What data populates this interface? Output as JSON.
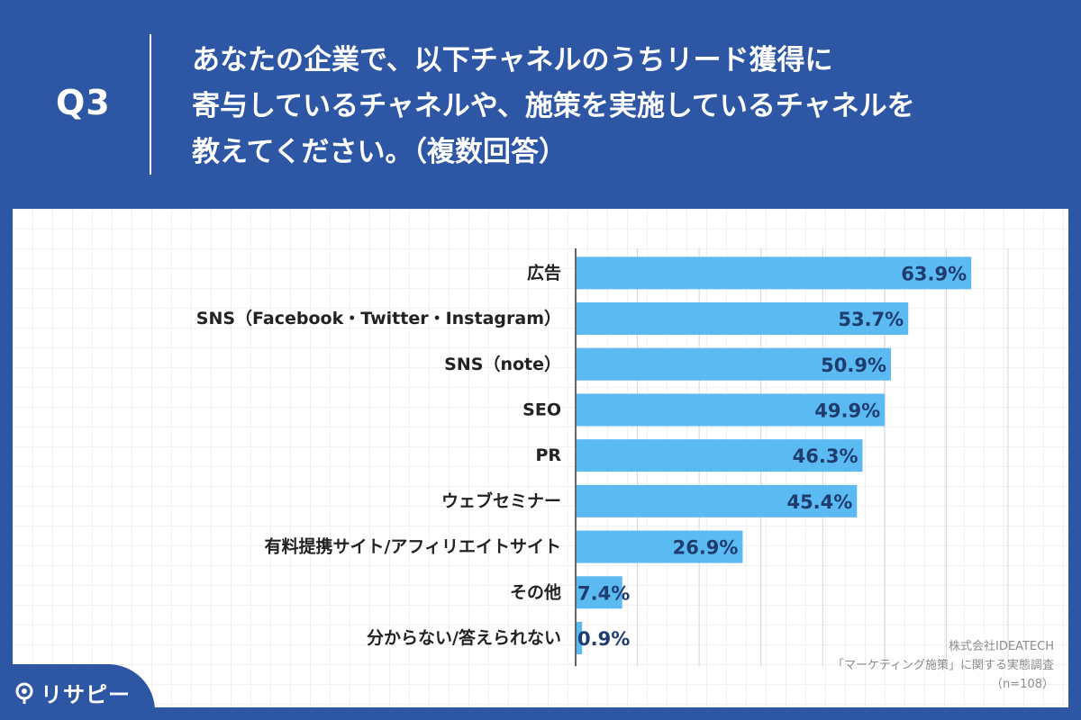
{
  "header": {
    "question_number": "Q3",
    "question_lines": [
      "あなたの企業で、以下チャネルのうちリード獲得に",
      "寄与しているチャネルや、施策を実施しているチャネルを",
      "教えてください。（複数回答）"
    ]
  },
  "chart_data": {
    "type": "bar",
    "orientation": "horizontal",
    "categories": [
      "広告",
      "SNS（Facebook・Twitter・Instagram）",
      "SNS（note）",
      "SEO",
      "PR",
      "ウェブセミナー",
      "有料提携サイト/アフィリエイトサイト",
      "その他",
      "分からない/答えられない"
    ],
    "values": [
      63.9,
      53.7,
      50.9,
      49.9,
      46.3,
      45.4,
      26.9,
      7.4,
      0.9
    ],
    "value_labels": [
      "63.9%",
      "53.7%",
      "50.9%",
      "49.9%",
      "46.3%",
      "45.4%",
      "26.9%",
      "7.4%",
      "0.9%"
    ],
    "xlim": [
      0,
      70
    ],
    "grid": true,
    "bar_color": "#5bbaf2",
    "label_color": "#1f3c6e"
  },
  "source": {
    "company": "株式会社IDEATECH",
    "survey": "「マーケティング施策」に関する実態調査",
    "sample": "（n=108）"
  },
  "logo": {
    "icon": "pin-icon",
    "text": "リサピー"
  }
}
